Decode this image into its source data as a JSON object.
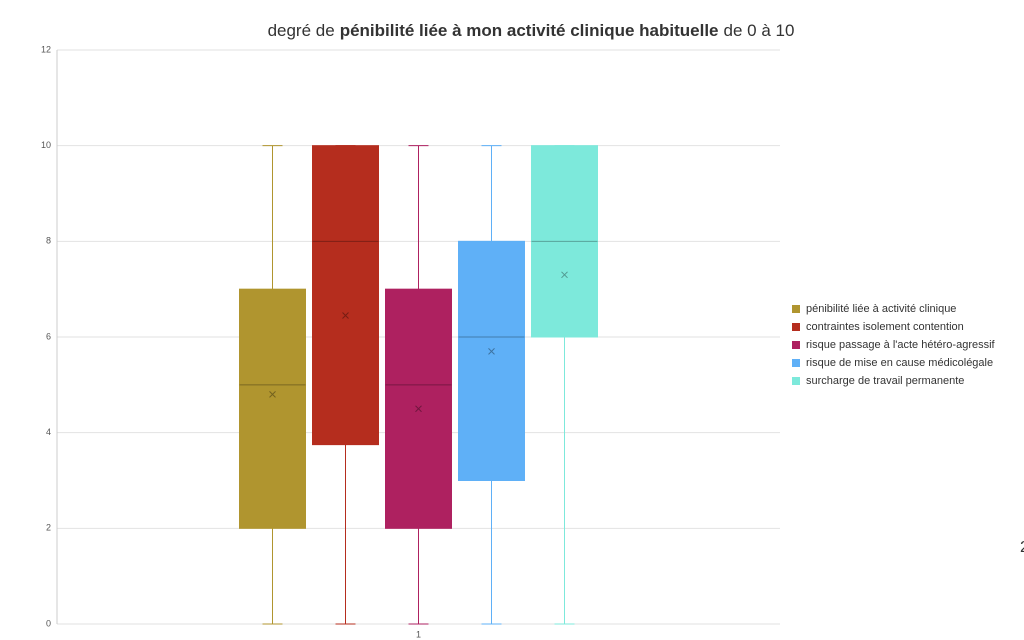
{
  "chart_data": {
    "type": "box",
    "title": [
      "degré de",
      "pénibilité liée à mon activité clinique habituelle",
      "de 0 à 10"
    ],
    "categories": [
      "1"
    ],
    "ylim": [
      0,
      12
    ],
    "yticks": [
      0,
      2,
      4,
      6,
      8,
      10,
      12
    ],
    "grid": true,
    "legend": "right",
    "series": [
      {
        "name": "pénibilité liée à activité clinique",
        "color": "#b0952f",
        "min": 0,
        "q1": 2,
        "median": 5,
        "q3": 7,
        "max": 10,
        "mean": 4.8
      },
      {
        "name": "contraintes isolement contention",
        "color": "#b52d1e",
        "min": 0,
        "q1": 3.75,
        "median": 8,
        "q3": 10,
        "max": 10,
        "mean": 6.45
      },
      {
        "name": "risque passage à l'acte hétéro-agressif",
        "color": "#ae2160",
        "min": 0,
        "q1": 2,
        "median": 5,
        "q3": 7,
        "max": 10,
        "mean": 4.5
      },
      {
        "name": "risque de mise en cause médicolégale",
        "color": "#5fb0f7",
        "min": 0,
        "q1": 3,
        "median": 6,
        "q3": 8,
        "max": 10,
        "mean": 5.7
      },
      {
        "name": "surcharge de travail permanente",
        "color": "#7de9db",
        "min": 0,
        "q1": 6,
        "median": 8,
        "q3": 10,
        "max": 10,
        "mean": 7.3
      }
    ]
  },
  "edge_text": "2"
}
